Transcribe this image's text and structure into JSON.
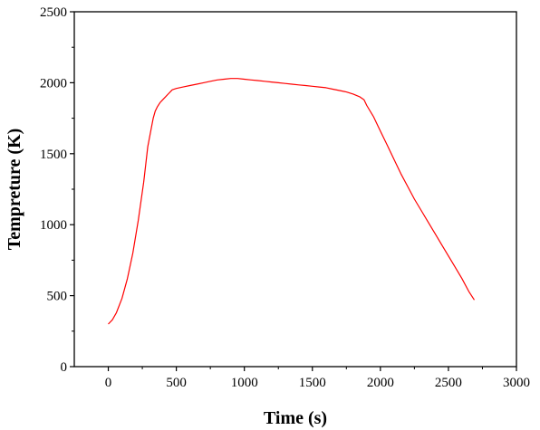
{
  "chart_data": {
    "type": "line",
    "title": "",
    "xlabel": "Time (s)",
    "ylabel": "Tempreture (K)",
    "xlim": [
      -250,
      3000
    ],
    "ylim": [
      0,
      2500
    ],
    "xticks": [
      0,
      500,
      1000,
      1500,
      2000,
      2500,
      3000
    ],
    "yticks": [
      0,
      500,
      1000,
      1500,
      2000,
      2500
    ],
    "grid": false,
    "legend": "none",
    "series": [
      {
        "color": "#ff0000",
        "x": [
          0,
          30,
          60,
          100,
          140,
          180,
          220,
          260,
          290,
          310,
          320,
          330,
          345,
          360,
          380,
          400,
          420,
          440,
          470,
          500,
          550,
          600,
          650,
          700,
          750,
          800,
          850,
          900,
          950,
          1000,
          1050,
          1100,
          1150,
          1200,
          1250,
          1300,
          1350,
          1400,
          1450,
          1500,
          1550,
          1600,
          1650,
          1700,
          1750,
          1800,
          1850,
          1880,
          1900,
          1950,
          2000,
          2050,
          2100,
          2150,
          2200,
          2250,
          2300,
          2350,
          2400,
          2450,
          2500,
          2550,
          2600,
          2650,
          2690
        ],
        "y": [
          300,
          330,
          380,
          480,
          620,
          800,
          1030,
          1300,
          1550,
          1650,
          1700,
          1750,
          1800,
          1830,
          1860,
          1880,
          1900,
          1920,
          1950,
          1960,
          1970,
          1980,
          1990,
          2000,
          2010,
          2020,
          2025,
          2030,
          2030,
          2025,
          2020,
          2015,
          2010,
          2005,
          2000,
          1995,
          1990,
          1985,
          1980,
          1975,
          1970,
          1965,
          1955,
          1945,
          1935,
          1920,
          1900,
          1880,
          1840,
          1760,
          1660,
          1560,
          1460,
          1360,
          1270,
          1180,
          1100,
          1020,
          940,
          860,
          780,
          700,
          620,
          530,
          470
        ]
      }
    ]
  }
}
